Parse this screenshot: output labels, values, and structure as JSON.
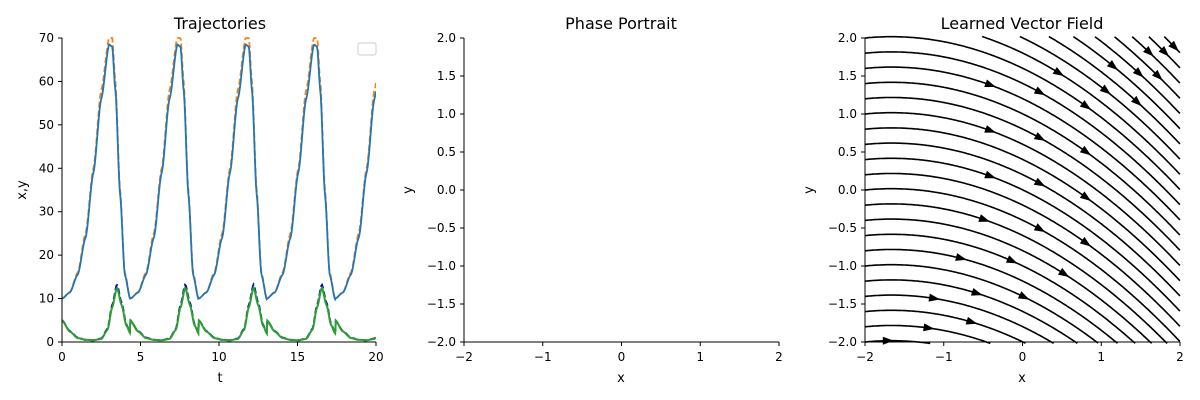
{
  "colors": {
    "x_true": "#ff7f0e",
    "x_pred": "#1f77b4",
    "y_true": "#0000cc",
    "y_pred": "#2ca02c",
    "stream": "#000000"
  },
  "chart_data": [
    {
      "type": "line",
      "title": "Trajectories",
      "xlabel": "t",
      "ylabel": "x,y",
      "xlim": [
        0,
        20
      ],
      "ylim": [
        0,
        70
      ],
      "xticks": [
        0,
        5,
        10,
        15,
        20
      ],
      "yticks": [
        0,
        10,
        20,
        30,
        40,
        50,
        60,
        70
      ],
      "legend": {
        "placement": "top-right",
        "entries": []
      },
      "period": 4.35,
      "series": [
        {
          "key": "x_true",
          "style": "dashed",
          "t": [
            0,
            0.5,
            1.0,
            1.5,
            2.0,
            2.5,
            3.0,
            3.2,
            3.4,
            3.7,
            4.0,
            4.35
          ],
          "v": [
            10,
            11.5,
            16,
            25,
            40,
            58,
            70,
            70,
            60,
            35,
            16,
            10
          ]
        },
        {
          "key": "x_pred",
          "style": "solid",
          "t": [
            0,
            0.5,
            1.0,
            1.5,
            2.0,
            2.5,
            3.0,
            3.2,
            3.4,
            3.7,
            4.0,
            4.35
          ],
          "v": [
            10,
            11.4,
            15.5,
            24,
            39,
            56,
            68.5,
            68,
            58,
            34,
            15.5,
            9.8
          ]
        },
        {
          "key": "y_true",
          "style": "dashed",
          "t": [
            0,
            0.5,
            1.0,
            1.5,
            2.0,
            2.5,
            2.9,
            3.2,
            3.5,
            3.8,
            4.1,
            4.35
          ],
          "v": [
            5,
            2.5,
            1,
            0.5,
            0.4,
            0.8,
            3,
            8.5,
            13.2,
            9,
            4,
            2
          ]
        },
        {
          "key": "y_pred",
          "style": "solid",
          "t": [
            0,
            0.5,
            1.0,
            1.5,
            2.0,
            2.5,
            2.9,
            3.2,
            3.5,
            3.8,
            4.1,
            4.35
          ],
          "v": [
            5,
            2.4,
            0.9,
            0.5,
            0.4,
            0.7,
            2.8,
            8,
            12.5,
            8.5,
            3.8,
            2
          ]
        }
      ]
    },
    {
      "type": "scatter",
      "title": "Phase Portrait",
      "xlabel": "x",
      "ylabel": "y",
      "xlim": [
        -2,
        2
      ],
      "ylim": [
        -2,
        2
      ],
      "xticks": [
        -2,
        -1,
        0,
        1,
        2
      ],
      "yticks": [
        -2.0,
        -1.5,
        -1.0,
        -0.5,
        0.0,
        0.5,
        1.0,
        1.5,
        2.0
      ],
      "series": []
    },
    {
      "type": "streamplot",
      "title": "Learned Vector Field",
      "xlabel": "x",
      "ylabel": "y",
      "xlim": [
        -2,
        2
      ],
      "ylim": [
        -2,
        2
      ],
      "xticks": [
        -2,
        -1,
        0,
        1,
        2
      ],
      "yticks": [
        -2.0,
        -1.5,
        -1.0,
        -0.5,
        0.0,
        0.5,
        1.0,
        1.5,
        2.0
      ],
      "field": "dx = 1, dy = -0.5 - 0.3*x (approx.)"
    }
  ]
}
